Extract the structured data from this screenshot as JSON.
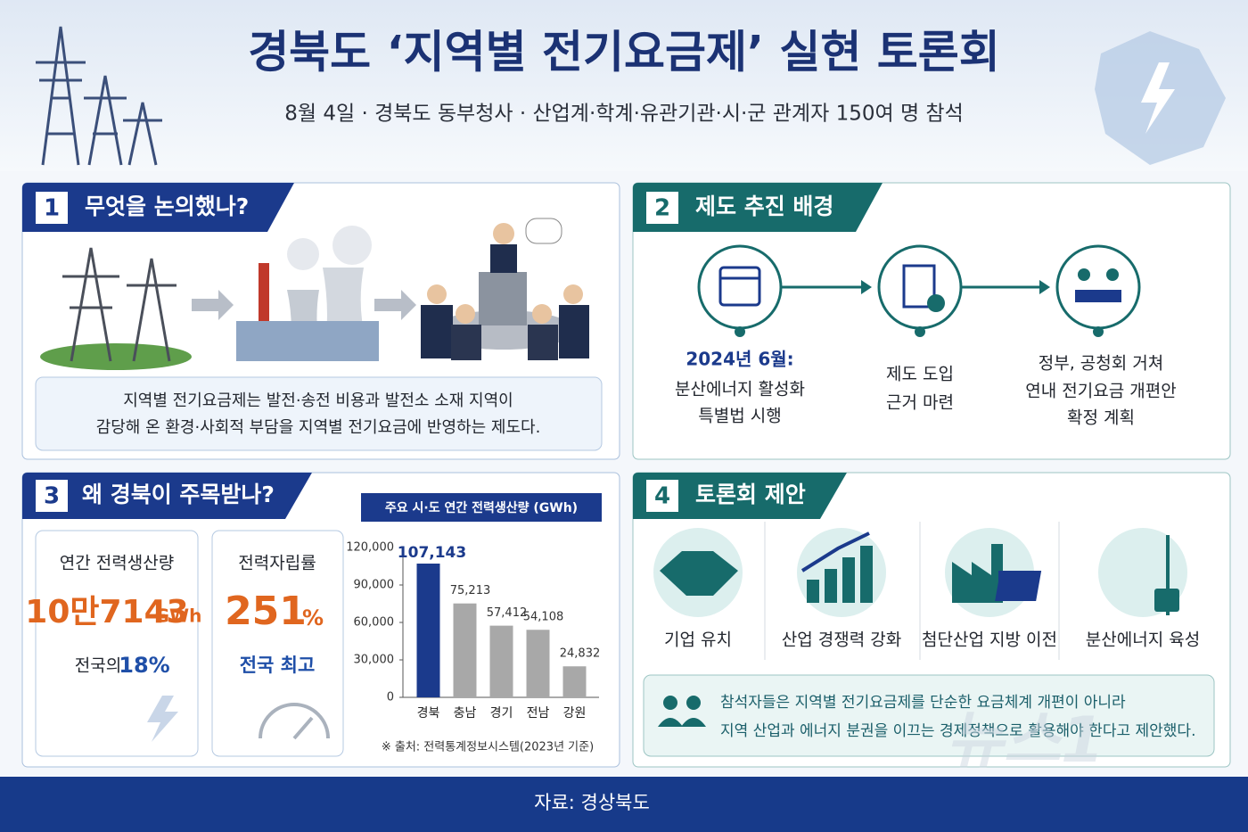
{
  "header": {
    "title": "경북도 ‘지역별 전기요금제’ 실현 토론회",
    "subtitle": "8월 4일 · 경북도 동부청사 · 산업계·학계·유관기관·시·군 관계자 150여 명 참석"
  },
  "section1": {
    "number": "1",
    "title": "무엇을 논의했나?",
    "text_lines": [
      "지역별 전기요금제는 발전·송전 비용과 발전소 소재 지역이",
      "감당해 온 환경·사회적 부담을 지역별 전기요금에 반영하는 제도다."
    ]
  },
  "section2": {
    "number": "2",
    "title": "제도 추진 배경",
    "steps": [
      {
        "lines": [
          "2024년 6월:",
          "분산에너지 활성화",
          "특별법 시행"
        ]
      },
      {
        "lines": [
          "제도 도입",
          "근거 마련"
        ]
      },
      {
        "lines": [
          "정부, 공청회 거쳐",
          "연내 전기요금 개편안",
          "확정 계획"
        ]
      }
    ]
  },
  "section3": {
    "number": "3",
    "title": "왜 경북이 주목받나?",
    "stats": [
      {
        "label": "연간 전력생산량",
        "value": "10만7143",
        "unit": "GWh",
        "note": "전국의",
        "note_value": "18%"
      },
      {
        "label": "전력자립률",
        "value": "251",
        "unit": "%",
        "note": "전국 최고"
      }
    ]
  },
  "chart_data": {
    "type": "bar",
    "title": "주요 시·도 연간 전력생산량 (GWh)",
    "categories": [
      "경북",
      "충남",
      "경기",
      "전남",
      "강원"
    ],
    "values": [
      107143,
      75213,
      57412,
      54108,
      24832
    ],
    "value_labels": [
      "107,143",
      "75,213",
      "57,412",
      "54,108",
      "24,832"
    ],
    "colors": [
      "#1b3a8c",
      "#a8a8a8",
      "#a8a8a8",
      "#a8a8a8",
      "#a8a8a8"
    ],
    "ylim": [
      0,
      120000
    ],
    "yticks": [
      0,
      {
        "value": 30000,
        "label": "30,000"
      },
      {
        "value": 60000,
        "label": "60,000"
      },
      {
        "value": 90000,
        "label": "90,000"
      },
      {
        "value": 120000,
        "label": "120,000"
      }
    ],
    "source": "※ 출처: 전력통계정보시스템(2023년 기준)"
  },
  "section4": {
    "number": "4",
    "title": "토론회 제안",
    "items": [
      "기업 유치",
      "산업 경쟁력 강화",
      "첨단산업 지방 이전",
      "분산에너지 육성"
    ],
    "conclusion_lines": [
      "참석자들은 지역별 전기요금제를 단순한 요금체계 개편이 아니라",
      "지역 산업과 에너지 분권을 이끄는 경제정책으로 활용해야 한다고 제안했다."
    ]
  },
  "watermark": "뉴스1",
  "footer": {
    "source": "자료: 경상북도"
  }
}
